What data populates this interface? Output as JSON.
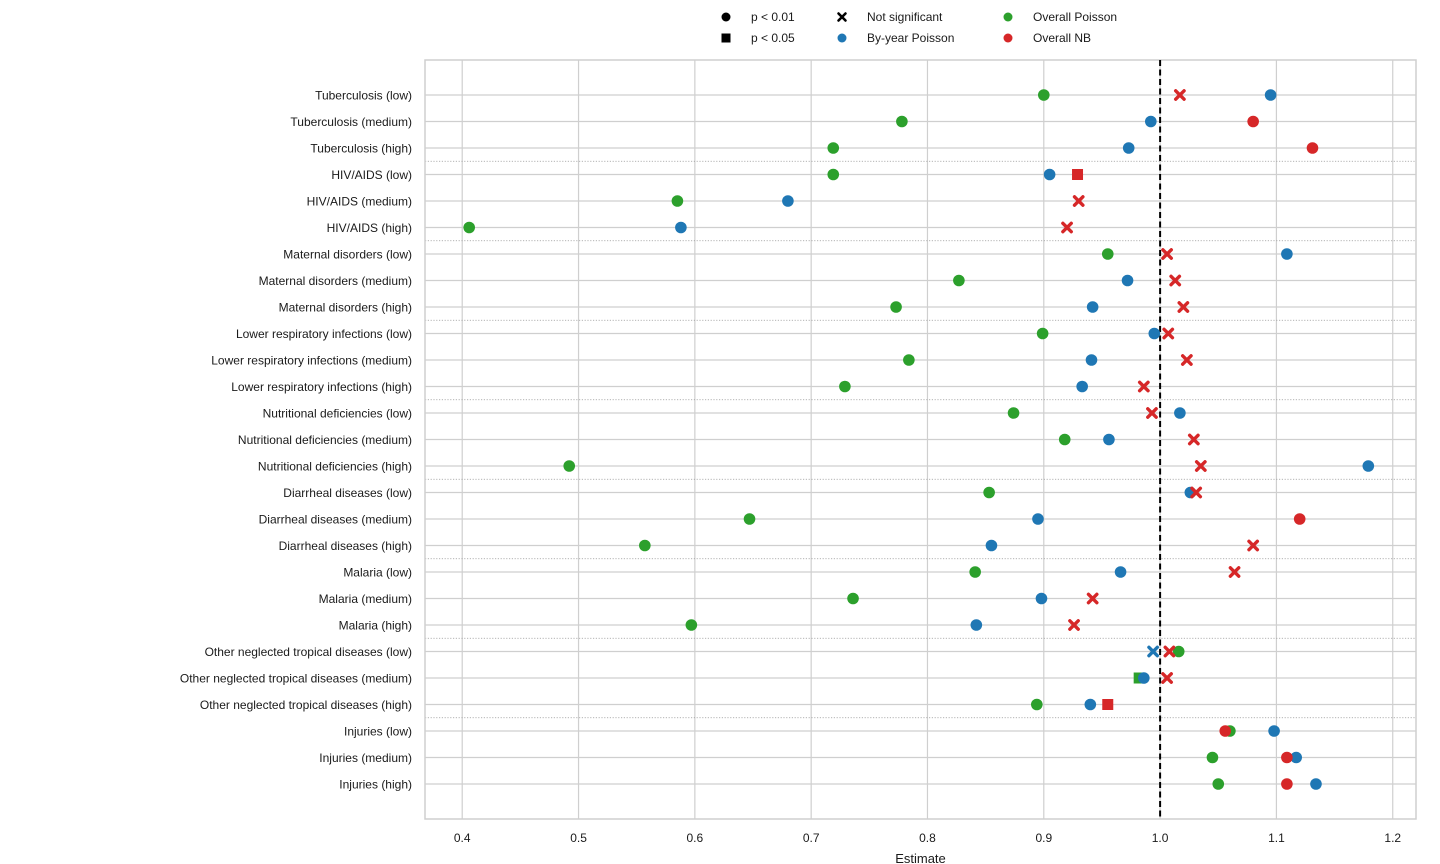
{
  "chart_data": {
    "type": "scatter",
    "title": "",
    "xlabel": "Estimate",
    "ylabel": "",
    "xlim": [
      0.368,
      1.22
    ],
    "x_ticks": [
      0.4,
      0.5,
      0.6,
      0.7,
      0.8,
      0.9,
      1.0,
      1.1,
      1.2
    ],
    "x_tick_labels": [
      "0.4",
      "0.5",
      "0.6",
      "0.7",
      "0.8",
      "0.9",
      "1.0",
      "1.1",
      "1.2"
    ],
    "reference_line": 1.0,
    "grid": true,
    "legend_position": "top-center",
    "legend": {
      "markers": [
        {
          "label": "p < 0.01",
          "shape": "circle"
        },
        {
          "label": "p < 0.05",
          "shape": "square"
        },
        {
          "label": "Not significant",
          "shape": "x"
        }
      ],
      "series": [
        {
          "label": "By-year Poisson",
          "color": "#1f77b4"
        },
        {
          "label": "Overall Poisson",
          "color": "#2ca02c"
        },
        {
          "label": "Overall NB",
          "color": "#d62728"
        }
      ]
    },
    "categories": [
      "Tuberculosis (low)",
      "Tuberculosis (medium)",
      "Tuberculosis (high)",
      "HIV/AIDS (low)",
      "HIV/AIDS (medium)",
      "HIV/AIDS (high)",
      "Maternal disorders (low)",
      "Maternal disorders (medium)",
      "Maternal disorders (high)",
      "Lower respiratory infections (low)",
      "Lower respiratory infections (medium)",
      "Lower respiratory infections (high)",
      "Nutritional deficiencies (low)",
      "Nutritional deficiencies (medium)",
      "Nutritional deficiencies (high)",
      "Diarrheal diseases (low)",
      "Diarrheal diseases (medium)",
      "Diarrheal diseases (high)",
      "Malaria (low)",
      "Malaria (medium)",
      "Malaria (high)",
      "Other neglected tropical diseases (low)",
      "Other neglected tropical diseases (medium)",
      "Other neglected tropical diseases (high)",
      "Injuries (low)",
      "Injuries (medium)",
      "Injuries (high)"
    ],
    "group_size": 3,
    "series": [
      {
        "name": "Overall Poisson",
        "color": "#2ca02c",
        "values": [
          0.9,
          0.778,
          0.719,
          0.719,
          0.585,
          0.406,
          0.955,
          0.827,
          0.773,
          0.899,
          0.784,
          0.729,
          0.874,
          0.918,
          0.492,
          0.853,
          0.647,
          0.557,
          0.841,
          0.736,
          0.597,
          1.016,
          0.982,
          0.894,
          1.06,
          1.045,
          1.05
        ],
        "significance": [
          "p01",
          "p01",
          "p01",
          "p01",
          "p01",
          "p01",
          "p01",
          "p01",
          "p01",
          "p01",
          "p01",
          "p01",
          "p01",
          "p01",
          "p01",
          "p01",
          "p01",
          "p01",
          "p01",
          "p01",
          "p01",
          "p01",
          "p05",
          "p01",
          "p01",
          "p01",
          "p01"
        ]
      },
      {
        "name": "By-year Poisson",
        "color": "#1f77b4",
        "values": [
          1.095,
          0.992,
          0.973,
          0.905,
          0.68,
          0.588,
          1.109,
          0.972,
          0.942,
          0.995,
          0.941,
          0.933,
          1.017,
          0.956,
          1.179,
          1.026,
          0.895,
          0.855,
          0.966,
          0.898,
          0.842,
          0.994,
          0.986,
          0.94,
          1.098,
          1.117,
          1.134
        ],
        "significance": [
          "p01",
          "p01",
          "p01",
          "p01",
          "p01",
          "p01",
          "p01",
          "p01",
          "p01",
          "p01",
          "p01",
          "p01",
          "p01",
          "p01",
          "p01",
          "p01",
          "p01",
          "p01",
          "p01",
          "p01",
          "p01",
          "ns",
          "p01",
          "p01",
          "p01",
          "p01",
          "p01"
        ]
      },
      {
        "name": "Overall NB",
        "color": "#d62728",
        "values": [
          1.017,
          1.08,
          1.131,
          0.929,
          0.93,
          0.92,
          1.006,
          1.013,
          1.02,
          1.007,
          1.023,
          0.986,
          0.993,
          1.029,
          1.035,
          1.031,
          1.12,
          1.08,
          1.064,
          0.942,
          0.926,
          1.008,
          1.006,
          0.955,
          1.056,
          1.109,
          1.109
        ],
        "significance": [
          "ns",
          "p01",
          "p01",
          "p05",
          "ns",
          "ns",
          "ns",
          "ns",
          "ns",
          "ns",
          "ns",
          "ns",
          "ns",
          "ns",
          "ns",
          "ns",
          "p01",
          "ns",
          "ns",
          "ns",
          "ns",
          "ns",
          "ns",
          "p05",
          "p01",
          "p01",
          "p01"
        ]
      }
    ]
  }
}
